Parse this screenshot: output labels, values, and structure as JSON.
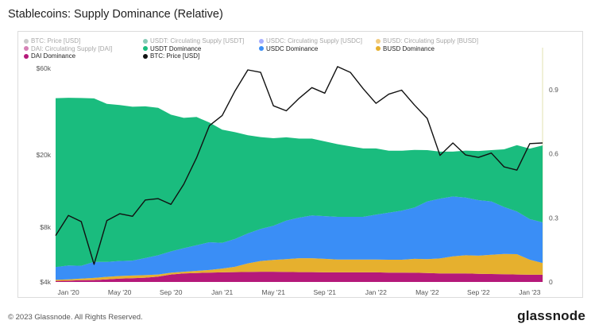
{
  "title": "Stablecoins: Supply Dominance (Relative)",
  "footer": {
    "copyright": "© 2023 Glassnode. All Rights Reserved.",
    "logo": "glassnode"
  },
  "legend": [
    {
      "label": "BTC: Price [USD]",
      "color": "#9e9e9e",
      "faded": true
    },
    {
      "label": "USDT: Circulating Supply [USDT]",
      "color": "#26a17b",
      "faded": true
    },
    {
      "label": "USDC: Circulating Supply [USDC]",
      "color": "#5c6bff",
      "faded": true
    },
    {
      "label": "BUSD: Circulating Supply [BUSD]",
      "color": "#e8a317",
      "faded": true
    },
    {
      "label": "DAI: Circulating Supply [DAI]",
      "color": "#b5197a",
      "faded": true
    },
    {
      "label": "USDT Dominance",
      "color": "#1abc7e",
      "faded": false
    },
    {
      "label": "USDC Dominance",
      "color": "#3a8ef6",
      "faded": false
    },
    {
      "label": "BUSD Dominance",
      "color": "#e6b02e",
      "faded": false
    },
    {
      "label": "DAI Dominance",
      "color": "#b5197a",
      "faded": false
    },
    {
      "label": "BTC: Price [USD]",
      "color": "#111111",
      "faded": false
    }
  ],
  "chart_data": {
    "type": "area",
    "x_tick_labels": [
      "Jan '20",
      "May '20",
      "Sep '20",
      "Jan '21",
      "May '21",
      "Sep '21",
      "Jan '22",
      "May '22",
      "Sep '22",
      "Jan '23"
    ],
    "y_left_tick_labels": [
      "$60k",
      "$20k",
      "$8k",
      "$4k"
    ],
    "y_left_scale": "log",
    "y_right_tick_labels": [
      "0.9",
      "0.6",
      "0.3",
      "0"
    ],
    "y_right_range": [
      0,
      1.0
    ],
    "x": [
      "2019-12",
      "2020-01",
      "2020-02",
      "2020-03",
      "2020-04",
      "2020-05",
      "2020-06",
      "2020-07",
      "2020-08",
      "2020-09",
      "2020-10",
      "2020-11",
      "2020-12",
      "2021-01",
      "2021-02",
      "2021-03",
      "2021-04",
      "2021-05",
      "2021-06",
      "2021-07",
      "2021-08",
      "2021-09",
      "2021-10",
      "2021-11",
      "2021-12",
      "2022-01",
      "2022-02",
      "2022-03",
      "2022-04",
      "2022-05",
      "2022-06",
      "2022-07",
      "2022-08",
      "2022-09",
      "2022-10",
      "2022-11",
      "2022-12",
      "2023-01",
      "2023-02"
    ],
    "series": [
      {
        "name": "DAI Dominance",
        "color": "#b5197a",
        "values": [
          0.005,
          0.006,
          0.008,
          0.009,
          0.012,
          0.016,
          0.018,
          0.02,
          0.025,
          0.035,
          0.04,
          0.042,
          0.044,
          0.045,
          0.046,
          0.047,
          0.048,
          0.048,
          0.047,
          0.046,
          0.046,
          0.045,
          0.045,
          0.045,
          0.045,
          0.045,
          0.044,
          0.044,
          0.043,
          0.042,
          0.04,
          0.04,
          0.04,
          0.038,
          0.037,
          0.036,
          0.035,
          0.034,
          0.034
        ]
      },
      {
        "name": "BUSD Dominance",
        "color": "#e6b02e",
        "values": [
          0.005,
          0.006,
          0.008,
          0.01,
          0.012,
          0.012,
          0.012,
          0.012,
          0.01,
          0.008,
          0.008,
          0.01,
          0.012,
          0.018,
          0.025,
          0.04,
          0.05,
          0.055,
          0.06,
          0.065,
          0.065,
          0.063,
          0.06,
          0.06,
          0.06,
          0.06,
          0.06,
          0.06,
          0.065,
          0.065,
          0.07,
          0.08,
          0.085,
          0.085,
          0.09,
          0.095,
          0.095,
          0.07,
          0.055
        ]
      },
      {
        "name": "USDC Dominance",
        "color": "#3a8ef6",
        "values": [
          0.06,
          0.065,
          0.06,
          0.075,
          0.07,
          0.07,
          0.07,
          0.08,
          0.09,
          0.1,
          0.11,
          0.12,
          0.13,
          0.12,
          0.13,
          0.14,
          0.15,
          0.16,
          0.18,
          0.19,
          0.2,
          0.2,
          0.2,
          0.2,
          0.2,
          0.21,
          0.22,
          0.23,
          0.24,
          0.27,
          0.28,
          0.28,
          0.27,
          0.26,
          0.25,
          0.22,
          0.2,
          0.19,
          0.19
        ]
      },
      {
        "name": "USDT Dominance",
        "color": "#1abc7e",
        "values": [
          0.79,
          0.785,
          0.785,
          0.765,
          0.74,
          0.73,
          0.72,
          0.71,
          0.69,
          0.64,
          0.61,
          0.6,
          0.56,
          0.53,
          0.5,
          0.46,
          0.43,
          0.41,
          0.39,
          0.37,
          0.36,
          0.35,
          0.34,
          0.33,
          0.32,
          0.31,
          0.29,
          0.28,
          0.27,
          0.24,
          0.22,
          0.21,
          0.22,
          0.23,
          0.24,
          0.27,
          0.31,
          0.33,
          0.36
        ]
      }
    ],
    "btc_price_usd": {
      "name": "BTC: Price [USD]",
      "color": "#111111",
      "values": [
        7200,
        9300,
        8600,
        5000,
        8700,
        9500,
        9200,
        11300,
        11500,
        10700,
        13800,
        19300,
        29000,
        33000,
        45000,
        58800,
        57000,
        37300,
        35000,
        41000,
        47000,
        43800,
        61300,
        57000,
        46300,
        38500,
        43200,
        45500,
        37700,
        31800,
        19900,
        23300,
        20000,
        19400,
        20500,
        17200,
        16500,
        23100,
        23300
      ]
    }
  }
}
